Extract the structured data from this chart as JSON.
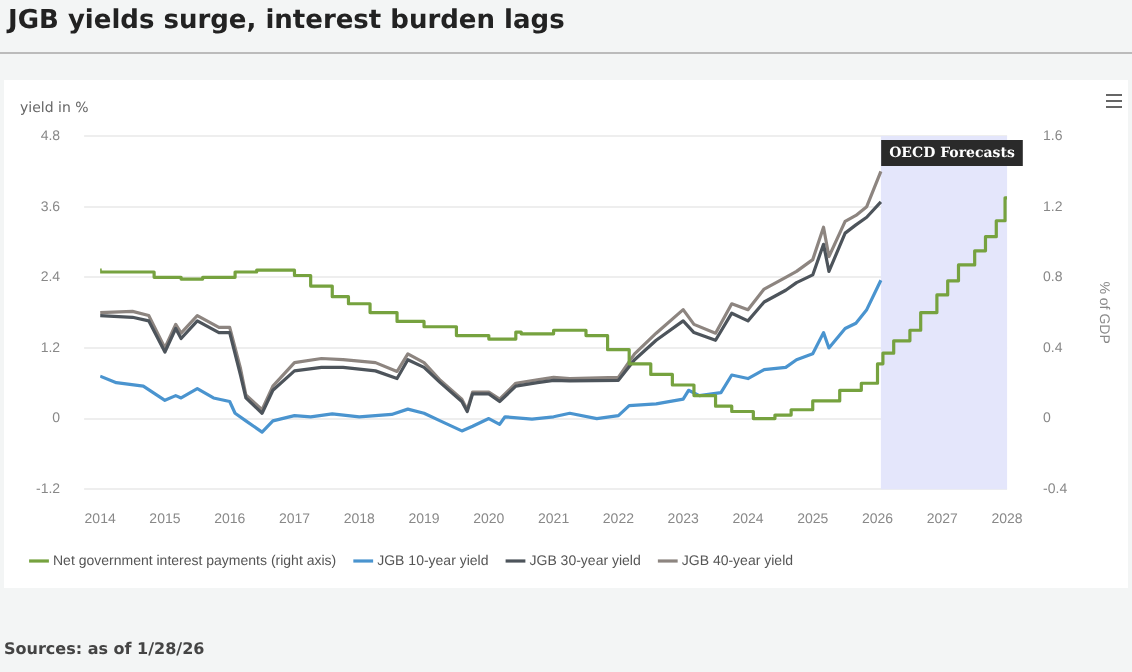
{
  "chart_data": {
    "type": "line",
    "title": "JGB yields surge, interest burden lags",
    "ylabel": "yield in %",
    "y2label": "% of GDP",
    "xlim": [
      "2014",
      "2028"
    ],
    "xticks": [
      "2014",
      "2015",
      "2016",
      "2017",
      "2018",
      "2019",
      "2020",
      "2021",
      "2022",
      "2023",
      "2024",
      "2025",
      "2026",
      "2027",
      "2028"
    ],
    "ylim": [
      -1.2,
      4.8
    ],
    "yticks": [
      -1.2,
      0,
      1.2,
      2.4,
      3.6,
      4.8
    ],
    "y2lim": [
      -0.4,
      1.6
    ],
    "y2ticks": [
      -0.4,
      0,
      0.4,
      0.8,
      1.2,
      1.6
    ],
    "grid": "y",
    "legend": "bottom left",
    "marker": "none",
    "line_style": "solid",
    "bands": [
      {
        "axis": "x",
        "from": "2026-01-20",
        "to": "2028",
        "label": "OECD Forecasts",
        "color": "#e4e6fb"
      }
    ],
    "annotations": [
      "Sources: as of 1/28/26"
    ],
    "series": [
      {
        "name": "Net government interest payments (right axis)",
        "type": "step",
        "axis": "y2",
        "color": "#76a23f",
        "x": [
          "2014-01",
          "2014-11",
          "2015-04",
          "2015-08",
          "2016-02",
          "2016-06",
          "2017-01",
          "2017-04",
          "2017-08",
          "2017-11",
          "2018-03",
          "2018-08",
          "2019-01",
          "2019-07",
          "2020-01",
          "2020-06",
          "2020-07",
          "2021-01",
          "2021-07",
          "2021-11",
          "2022-03",
          "2022-07",
          "2022-11",
          "2023-03",
          "2023-07",
          "2023-10",
          "2024-02",
          "2024-06",
          "2024-09",
          "2025-01",
          "2025-06",
          "2025-10",
          "2026-01",
          "2026-02",
          "2026-04",
          "2026-07",
          "2026-09",
          "2026-12",
          "2027-02",
          "2027-04",
          "2027-07",
          "2027-09",
          "2027-11",
          "2027-12-20",
          "2028-01"
        ],
        "values": [
          0.85,
          0.83,
          0.8,
          0.79,
          0.8,
          0.83,
          0.84,
          0.81,
          0.75,
          0.69,
          0.65,
          0.6,
          0.55,
          0.52,
          0.47,
          0.45,
          0.49,
          0.48,
          0.5,
          0.47,
          0.39,
          0.31,
          0.25,
          0.19,
          0.13,
          0.07,
          0.04,
          0.0,
          0.02,
          0.05,
          0.1,
          0.16,
          0.2,
          0.31,
          0.37,
          0.44,
          0.5,
          0.6,
          0.7,
          0.78,
          0.87,
          0.95,
          1.03,
          1.12,
          1.25
        ]
      },
      {
        "name": "JGB 10-year yield",
        "color": "#4a94cf",
        "x": [
          "2014-01",
          "2014-04",
          "2014-09",
          "2015-01",
          "2015-03",
          "2015-04",
          "2015-07",
          "2015-10",
          "2016-01",
          "2016-02",
          "2016-04",
          "2016-07",
          "2016-09",
          "2017-01",
          "2017-04",
          "2017-08",
          "2018-01",
          "2018-07",
          "2018-10",
          "2019-01",
          "2019-04",
          "2019-08",
          "2019-10",
          "2020-01",
          "2020-03",
          "2020-04",
          "2020-09",
          "2021-01",
          "2021-04",
          "2021-09",
          "2022-01",
          "2022-03",
          "2022-08",
          "2023-01",
          "2023-02",
          "2023-04",
          "2023-08",
          "2023-10",
          "2024-01",
          "2024-04",
          "2024-08",
          "2024-10",
          "2025-01",
          "2025-03",
          "2025-04",
          "2025-07",
          "2025-09",
          "2025-11",
          "2026-01-20"
        ],
        "values": [
          0.72,
          0.61,
          0.55,
          0.31,
          0.39,
          0.35,
          0.51,
          0.35,
          0.29,
          0.09,
          -0.04,
          -0.23,
          -0.04,
          0.05,
          0.03,
          0.08,
          0.03,
          0.07,
          0.16,
          0.09,
          -0.04,
          -0.21,
          -0.13,
          0.0,
          -0.1,
          0.03,
          -0.01,
          0.03,
          0.09,
          0.0,
          0.05,
          0.22,
          0.25,
          0.33,
          0.48,
          0.39,
          0.44,
          0.74,
          0.68,
          0.83,
          0.87,
          1.0,
          1.1,
          1.46,
          1.2,
          1.53,
          1.62,
          1.85,
          2.35
        ]
      },
      {
        "name": "JGB 30-year yield",
        "color": "#4d545b",
        "x": [
          "2014-01",
          "2014-07",
          "2014-10",
          "2015-01",
          "2015-03",
          "2015-04",
          "2015-07",
          "2015-11",
          "2016-01",
          "2016-03",
          "2016-04",
          "2016-07",
          "2016-09",
          "2017-01",
          "2017-06",
          "2017-10",
          "2018-04",
          "2018-08",
          "2018-10",
          "2019-01",
          "2019-04",
          "2019-08",
          "2019-09",
          "2019-10",
          "2020-01",
          "2020-03",
          "2020-06",
          "2020-10",
          "2021-01",
          "2021-04",
          "2022-01",
          "2022-04",
          "2022-08",
          "2023-01",
          "2023-03",
          "2023-07",
          "2023-10",
          "2024-01",
          "2024-04",
          "2024-08",
          "2024-10",
          "2025-01",
          "2025-03",
          "2025-04",
          "2025-07",
          "2025-09",
          "2025-11",
          "2026-01-20"
        ],
        "values": [
          1.75,
          1.72,
          1.66,
          1.13,
          1.53,
          1.36,
          1.66,
          1.46,
          1.46,
          0.74,
          0.35,
          0.09,
          0.48,
          0.81,
          0.87,
          0.87,
          0.81,
          0.68,
          1.0,
          0.87,
          0.61,
          0.29,
          0.12,
          0.42,
          0.42,
          0.29,
          0.55,
          0.61,
          0.65,
          0.64,
          0.65,
          1.0,
          1.33,
          1.66,
          1.46,
          1.33,
          1.79,
          1.66,
          1.98,
          2.18,
          2.31,
          2.44,
          2.96,
          2.5,
          3.15,
          3.29,
          3.42,
          3.68
        ]
      },
      {
        "name": "JGB 40-year yield",
        "color": "#8d8580",
        "x": [
          "2014-01",
          "2014-07",
          "2014-10",
          "2015-01",
          "2015-03",
          "2015-04",
          "2015-07",
          "2015-11",
          "2016-01",
          "2016-03",
          "2016-04",
          "2016-07",
          "2016-09",
          "2017-01",
          "2017-06",
          "2017-10",
          "2018-04",
          "2018-08",
          "2018-10",
          "2019-01",
          "2019-04",
          "2019-08",
          "2019-09",
          "2019-10",
          "2020-01",
          "2020-03",
          "2020-06",
          "2020-10",
          "2021-01",
          "2021-04",
          "2022-01",
          "2022-04",
          "2022-08",
          "2023-01",
          "2023-03",
          "2023-07",
          "2023-10",
          "2024-01",
          "2024-04",
          "2024-08",
          "2024-10",
          "2025-01",
          "2025-03",
          "2025-04",
          "2025-07",
          "2025-09",
          "2025-11",
          "2026-01-20"
        ],
        "values": [
          1.8,
          1.82,
          1.75,
          1.2,
          1.6,
          1.45,
          1.75,
          1.55,
          1.55,
          0.85,
          0.4,
          0.15,
          0.55,
          0.95,
          1.02,
          1.0,
          0.95,
          0.8,
          1.1,
          0.95,
          0.65,
          0.33,
          0.15,
          0.45,
          0.45,
          0.33,
          0.6,
          0.66,
          0.7,
          0.68,
          0.7,
          1.1,
          1.45,
          1.85,
          1.6,
          1.45,
          1.95,
          1.85,
          2.2,
          2.4,
          2.5,
          2.7,
          3.25,
          2.75,
          3.35,
          3.45,
          3.6,
          4.2
        ]
      }
    ]
  }
}
